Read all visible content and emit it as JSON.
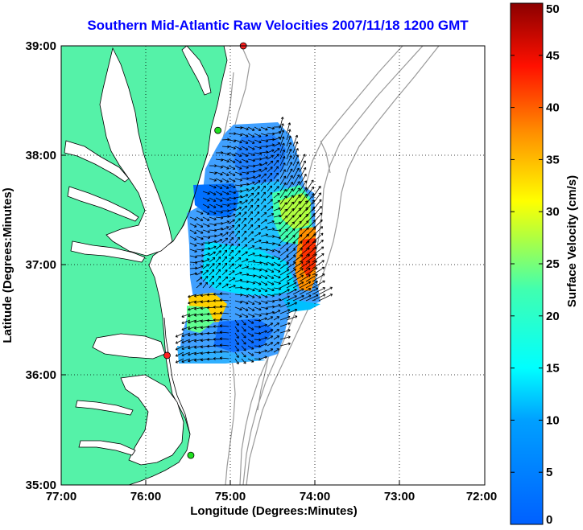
{
  "title": "Southern Mid-Atlantic Raw Velocities 2007/11/18 1200 GMT",
  "axes": {
    "xlabel": "Longitude (Degrees:Minutes)",
    "ylabel": "Latitude (Degrees:Minutes)",
    "xticks": [
      "77:00",
      "76:00",
      "75:00",
      "74:00",
      "73:00",
      "72:00"
    ],
    "yticks": [
      "39:00",
      "38:00",
      "37:00",
      "36:00",
      "35:00"
    ],
    "xlim_deg_west": [
      77,
      72
    ],
    "ylim_deg_north": [
      35,
      39
    ],
    "grid": "dotted"
  },
  "colorbar": {
    "label": "Surface Velocity (cm/s)",
    "ticks": [
      "0",
      "5",
      "10",
      "15",
      "20",
      "25",
      "30",
      "35",
      "40",
      "45",
      "50"
    ],
    "range": [
      0,
      50
    ],
    "colormap": "jet"
  },
  "colors": {
    "land": "#55f2a8",
    "coast": "#000000",
    "bathymetry": "#999999",
    "title": "#0000ff",
    "station_active": "#ff2020",
    "station_inactive": "#20e020"
  },
  "stations": [
    {
      "name": "north-station",
      "lon": -74.85,
      "lat": 39.0,
      "status": "active"
    },
    {
      "name": "delmarva-station",
      "lon": -75.15,
      "lat": 38.23,
      "status": "inactive"
    },
    {
      "name": "outer-banks-station",
      "lon": -75.75,
      "lat": 36.18,
      "status": "active"
    },
    {
      "name": "hatteras-station",
      "lon": -75.47,
      "lat": 35.27,
      "status": "inactive"
    }
  ]
}
